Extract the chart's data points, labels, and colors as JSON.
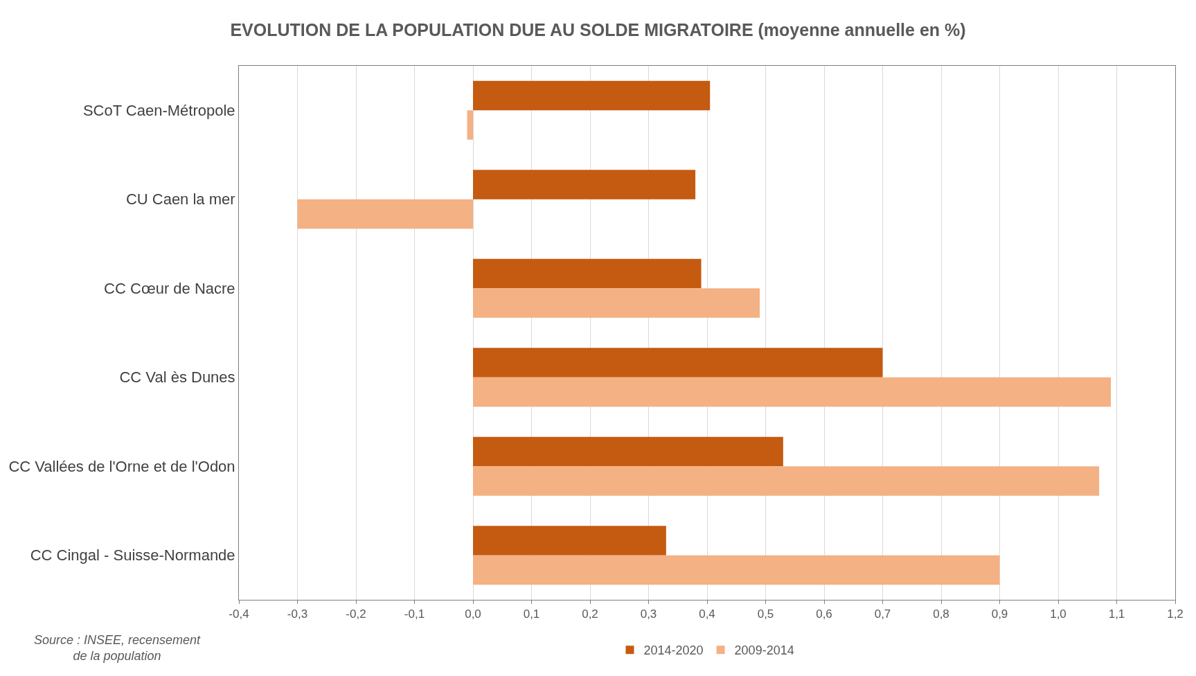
{
  "chart_data": {
    "type": "bar",
    "orientation": "horizontal",
    "title": "EVOLUTION DE LA POPULATION DUE AU SOLDE MIGRATOIRE (moyenne annuelle en %)",
    "categories": [
      "SCoT Caen-Métropole",
      "CU Caen la mer",
      "CC Cœur de Nacre",
      "CC Val ès Dunes",
      "CC Vallées de l'Orne et de l'Odon",
      "CC Cingal - Suisse-Normande"
    ],
    "series": [
      {
        "name": "2014-2020",
        "color": "#c55a11",
        "values": [
          0.405,
          0.38,
          0.39,
          0.7,
          0.53,
          0.33
        ]
      },
      {
        "name": "2009-2014",
        "color": "#f4b183",
        "values": [
          -0.01,
          -0.3,
          0.49,
          1.09,
          1.07,
          0.9
        ]
      }
    ],
    "xlim": [
      -0.4,
      1.2
    ],
    "xticks": [
      {
        "value": -0.4,
        "label": "-0,4"
      },
      {
        "value": -0.3,
        "label": "-0,3"
      },
      {
        "value": -0.2,
        "label": "-0,2"
      },
      {
        "value": -0.1,
        "label": "-0,1"
      },
      {
        "value": 0,
        "label": "0,0"
      },
      {
        "value": 0.1,
        "label": "0,1"
      },
      {
        "value": 0.2,
        "label": "0,2"
      },
      {
        "value": 0.3,
        "label": "0,3"
      },
      {
        "value": 0.4,
        "label": "0,4"
      },
      {
        "value": 0.5,
        "label": "0,5"
      },
      {
        "value": 0.6,
        "label": "0,6"
      },
      {
        "value": 0.7,
        "label": "0,7"
      },
      {
        "value": 0.8,
        "label": "0,8"
      },
      {
        "value": 0.9,
        "label": "0,9"
      },
      {
        "value": 1.0,
        "label": "1,0"
      },
      {
        "value": 1.1,
        "label": "1,1"
      },
      {
        "value": 1.2,
        "label": "1,2"
      }
    ],
    "grid": "x",
    "legend": "bottom",
    "annotations": [
      "Source : INSEE, recensement\nde la population"
    ]
  }
}
